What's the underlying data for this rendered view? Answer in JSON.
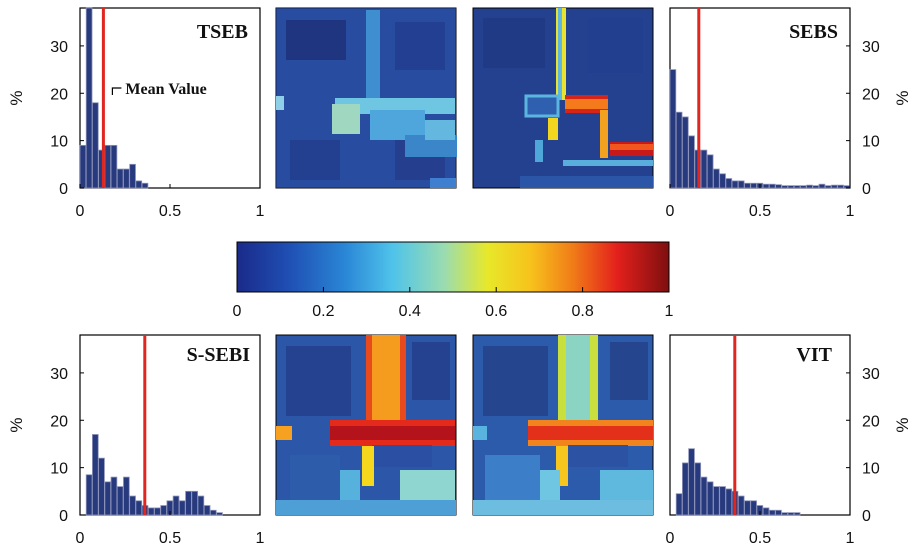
{
  "colors": {
    "bar": "#283a7e",
    "bar_edge": "#8d93b8",
    "mean_line": "#e0261f",
    "axis": "#000000"
  },
  "colorbar": {
    "ticks": [
      "0",
      "0.2",
      "0.4",
      "0.6",
      "0.8",
      "1"
    ],
    "colormap": "jet"
  },
  "chart_data": [
    {
      "type": "bar",
      "id": "tseb",
      "title": "TSEB",
      "ylabel": "%",
      "yticks": [
        "0",
        "10",
        "20",
        "30"
      ],
      "ylim": [
        0,
        38
      ],
      "xticks": [
        "0",
        "0.5",
        "1"
      ],
      "xlim": [
        0,
        1
      ],
      "annotation": "Mean Value",
      "mean": 0.13,
      "bin_width": 0.0345,
      "values": [
        9,
        38,
        18,
        8,
        9,
        9,
        4,
        4,
        5,
        1.5,
        1,
        0,
        0,
        0,
        0,
        0,
        0,
        0,
        0,
        0,
        0,
        0,
        0,
        0,
        0,
        0,
        0,
        0,
        0
      ]
    },
    {
      "type": "bar",
      "id": "sebs",
      "title": "SEBS",
      "ylabel": "%",
      "yticks": [
        "0",
        "10",
        "20",
        "30"
      ],
      "ylim": [
        0,
        38
      ],
      "xticks": [
        "0",
        "0.5",
        "1"
      ],
      "xlim": [
        0,
        1
      ],
      "mean": 0.16,
      "bin_width": 0.0345,
      "values": [
        25,
        16,
        15,
        11,
        8,
        8,
        7,
        4,
        3,
        2,
        1.5,
        1.5,
        1,
        1,
        1,
        0.8,
        0.8,
        0.7,
        0.5,
        0.5,
        0.5,
        0.5,
        0.6,
        0.5,
        0.8,
        0.5,
        0.6,
        0.6,
        0.5
      ]
    },
    {
      "type": "bar",
      "id": "ssebi",
      "title": "S-SEBI",
      "ylabel": "%",
      "yticks": [
        "0",
        "10",
        "20",
        "30"
      ],
      "ylim": [
        0,
        38
      ],
      "xticks": [
        "0",
        "0.5",
        "1"
      ],
      "xlim": [
        0,
        1
      ],
      "mean": 0.36,
      "bin_width": 0.0345,
      "values": [
        0,
        8.5,
        17,
        12,
        7,
        8,
        6,
        8,
        4,
        3,
        2,
        1.5,
        1.5,
        2,
        3,
        4,
        3,
        5,
        5,
        4,
        2,
        1,
        0.5,
        0,
        0,
        0,
        0,
        0,
        0
      ]
    },
    {
      "type": "bar",
      "id": "vit",
      "title": "VIT",
      "ylabel": "%",
      "yticks": [
        "0",
        "10",
        "20",
        "30"
      ],
      "ylim": [
        0,
        38
      ],
      "xticks": [
        "0",
        "0.5",
        "1"
      ],
      "xlim": [
        0,
        1
      ],
      "mean": 0.36,
      "bin_width": 0.0345,
      "values": [
        0,
        4.5,
        11,
        14,
        11,
        8,
        7,
        6,
        6,
        5.5,
        5,
        4,
        3,
        3,
        2,
        1.5,
        1,
        1,
        0.5,
        0.5,
        0.5,
        0,
        0,
        0,
        0,
        0,
        0,
        0,
        0
      ]
    }
  ]
}
